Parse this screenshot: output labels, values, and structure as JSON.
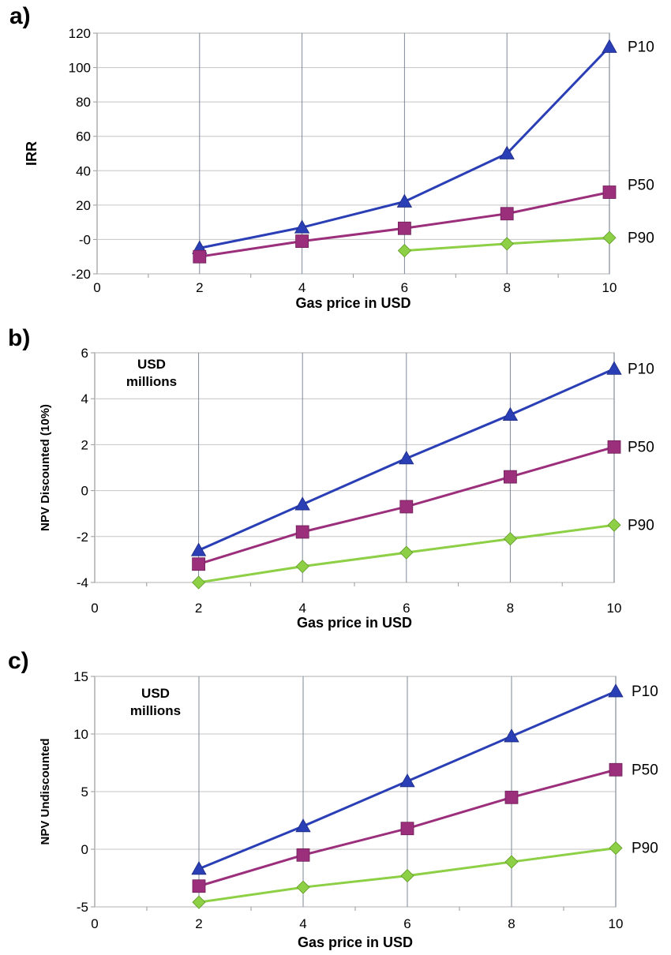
{
  "chart_data": [
    {
      "panel": "a)",
      "type": "line",
      "xlabel": "Gas price in USD",
      "ylabel": "IRR",
      "unit_note": [],
      "xlim": [
        0,
        10
      ],
      "ylim": [
        -20,
        120
      ],
      "xticks": [
        0,
        2,
        4,
        6,
        8,
        10
      ],
      "yticks": [
        -20,
        0,
        20,
        40,
        60,
        80,
        100,
        120
      ],
      "ytick_labels": [
        "-20",
        "-0",
        "20",
        "40",
        "60",
        "80",
        "100",
        "120"
      ],
      "grid": true,
      "series": [
        {
          "name": "P10",
          "color": "#2a3fb5",
          "marker": "triangle",
          "x": [
            2,
            4,
            6,
            8,
            10
          ],
          "y": [
            -5,
            7,
            22,
            50,
            112
          ]
        },
        {
          "name": "P50",
          "color": "#9b2f7c",
          "marker": "square",
          "x": [
            2,
            4,
            6,
            8,
            10
          ],
          "y": [
            -10,
            -1,
            6.5,
            15,
            27.5
          ]
        },
        {
          "name": "P90",
          "color": "#8dcf45",
          "marker": "diamond",
          "x": [
            6,
            8,
            10
          ],
          "y": [
            -6.5,
            -2.5,
            1
          ]
        }
      ]
    },
    {
      "panel": "b)",
      "type": "line",
      "xlabel": "Gas price in USD",
      "ylabel": "NPV Discounted (10%)",
      "unit_note": [
        "USD",
        "millions"
      ],
      "xlim": [
        0,
        10
      ],
      "ylim": [
        -4,
        6
      ],
      "xticks": [
        0,
        2,
        4,
        6,
        8,
        10
      ],
      "yticks": [
        -4,
        -2,
        0,
        2,
        4,
        6
      ],
      "ytick_labels": [
        "-4",
        "-2",
        "0",
        "2",
        "4",
        "6"
      ],
      "grid": true,
      "series": [
        {
          "name": "P10",
          "color": "#2a3fb5",
          "marker": "triangle",
          "x": [
            2,
            4,
            6,
            8,
            10
          ],
          "y": [
            -2.6,
            -0.6,
            1.4,
            3.3,
            5.3
          ]
        },
        {
          "name": "P50",
          "color": "#9b2f7c",
          "marker": "square",
          "x": [
            2,
            4,
            6,
            8,
            10
          ],
          "y": [
            -3.2,
            -1.8,
            -0.7,
            0.6,
            1.9
          ]
        },
        {
          "name": "P90",
          "color": "#8dcf45",
          "marker": "diamond",
          "x": [
            2,
            4,
            6,
            8,
            10
          ],
          "y": [
            -4.0,
            -3.3,
            -2.7,
            -2.1,
            -1.5
          ]
        }
      ]
    },
    {
      "panel": "c)",
      "type": "line",
      "xlabel": "Gas price in USD",
      "ylabel": "NPV Undiscounted",
      "unit_note": [
        "USD",
        "millions"
      ],
      "xlim": [
        0,
        10
      ],
      "ylim": [
        -5,
        15
      ],
      "xticks": [
        0,
        2,
        4,
        6,
        8,
        10
      ],
      "yticks": [
        -5,
        0,
        5,
        10,
        15
      ],
      "ytick_labels": [
        "-5",
        "0",
        "5",
        "10",
        "15"
      ],
      "grid": true,
      "series": [
        {
          "name": "P10",
          "color": "#2a3fb5",
          "marker": "triangle",
          "x": [
            2,
            4,
            6,
            8,
            10
          ],
          "y": [
            -1.7,
            2.0,
            5.9,
            9.8,
            13.7
          ]
        },
        {
          "name": "P50",
          "color": "#9b2f7c",
          "marker": "square",
          "x": [
            2,
            4,
            6,
            8,
            10
          ],
          "y": [
            -3.2,
            -0.5,
            1.8,
            4.5,
            6.9
          ]
        },
        {
          "name": "P90",
          "color": "#8dcf45",
          "marker": "diamond",
          "x": [
            2,
            4,
            6,
            8,
            10
          ],
          "y": [
            -4.6,
            -3.3,
            -2.3,
            -1.1,
            0.1
          ]
        }
      ]
    }
  ]
}
